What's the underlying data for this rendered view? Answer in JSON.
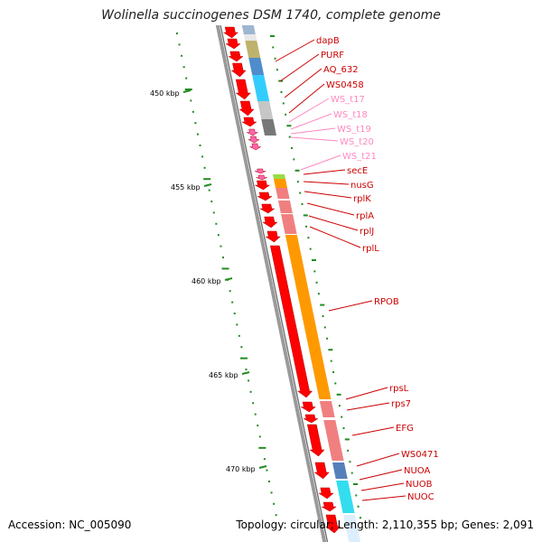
{
  "title": "Wolinella succinogenes DSM 1740, complete genome",
  "footer": {
    "accession": "Accession: NC_005090",
    "stats": "Topology: circular; Length: 2,110,355 bp; Genes: 2,091"
  },
  "colors": {
    "backbone": "#9a9a9a",
    "tick": "#228b22",
    "gene_label": "#cc0000",
    "trna_label": "#ff88c0",
    "cds_arrow": "#ff0000",
    "rna_arrow": "#ff66b2"
  },
  "scale_labels": [
    {
      "text": "450 kbp",
      "kbp": 450
    },
    {
      "text": "455 kbp",
      "kbp": 455
    },
    {
      "text": "460 kbp",
      "kbp": 460
    },
    {
      "text": "465 kbp",
      "kbp": 465
    },
    {
      "text": "470 kbp",
      "kbp": 470
    }
  ],
  "gene_labels": [
    {
      "text": "dapB",
      "type": "gene"
    },
    {
      "text": "PURF",
      "type": "gene"
    },
    {
      "text": "AQ_632",
      "type": "gene"
    },
    {
      "text": "WS0458",
      "type": "gene"
    },
    {
      "text": "WS_t17",
      "type": "trna"
    },
    {
      "text": "WS_t18",
      "type": "trna"
    },
    {
      "text": "WS_t19",
      "type": "trna"
    },
    {
      "text": "WS_t20",
      "type": "trna"
    },
    {
      "text": "WS_t21",
      "type": "trna"
    },
    {
      "text": "secE",
      "type": "gene"
    },
    {
      "text": "nusG",
      "type": "gene"
    },
    {
      "text": "rplK",
      "type": "gene"
    },
    {
      "text": "rplA",
      "type": "gene"
    },
    {
      "text": "rplJ",
      "type": "gene"
    },
    {
      "text": "rplL",
      "type": "gene"
    },
    {
      "text": "RPOB",
      "type": "gene"
    },
    {
      "text": "rpsL",
      "type": "gene"
    },
    {
      "text": "rps7",
      "type": "gene"
    },
    {
      "text": "EFG",
      "type": "gene"
    },
    {
      "text": "WS0471",
      "type": "gene"
    },
    {
      "text": "NUOA",
      "type": "gene"
    },
    {
      "text": "NUOB",
      "type": "gene"
    },
    {
      "text": "NUOC",
      "type": "gene"
    }
  ]
}
